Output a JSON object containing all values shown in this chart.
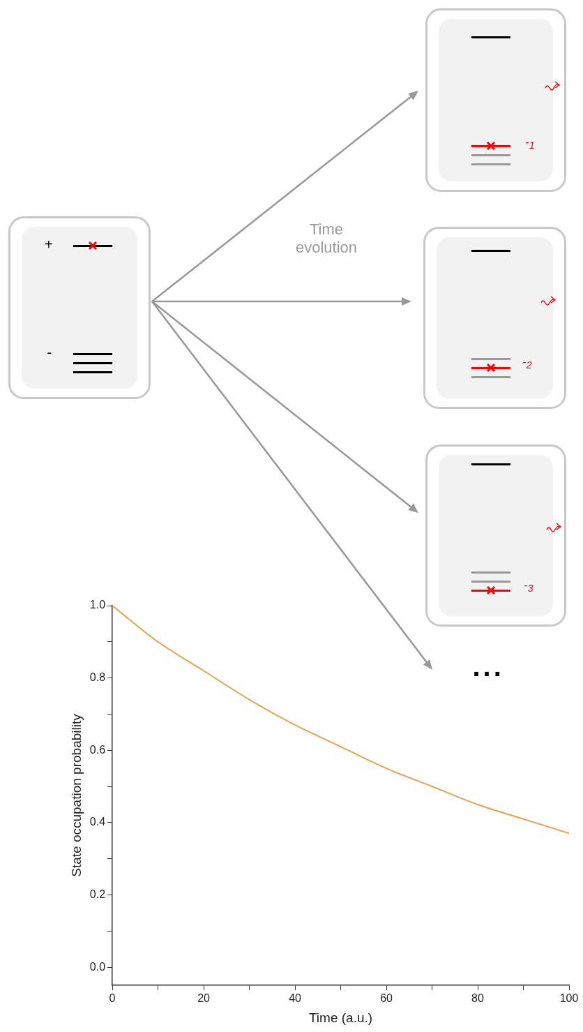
{
  "chart_data": {
    "type": "line",
    "xlabel": "Time (a.u.)",
    "ylabel": "State occupation probability",
    "x": [
      0,
      10,
      20,
      30,
      40,
      50,
      60,
      70,
      80,
      90,
      100
    ],
    "series": [
      {
        "color": "#e8a04c",
        "values": [
          1.0,
          0.9,
          0.82,
          0.74,
          0.67,
          0.61,
          0.55,
          0.5,
          0.45,
          0.41,
          0.37
        ]
      }
    ],
    "xlim": [
      0,
      100
    ],
    "ylim": [
      -0.05,
      1.0
    ],
    "xticks": [
      0,
      {
        "value": 10,
        "label": null
      },
      20,
      {
        "value": 30,
        "label": null
      },
      40,
      {
        "value": 50,
        "label": null
      },
      60,
      {
        "value": 70,
        "label": null
      },
      80,
      {
        "value": 90,
        "label": null
      },
      100
    ],
    "yticks": [
      {
        "value": 0,
        "label": "0.0"
      },
      {
        "value": 0.1,
        "label": null
      },
      {
        "value": 0.2,
        "label": "0.2"
      },
      {
        "value": 0.3,
        "label": null
      },
      {
        "value": 0.4,
        "label": "0.4"
      },
      {
        "value": 0.5,
        "label": null
      },
      {
        "value": 0.6,
        "label": "0.6"
      },
      {
        "value": 0.7,
        "label": null
      },
      {
        "value": 0.8,
        "label": "0.8"
      },
      {
        "value": 0.9,
        "label": null
      },
      {
        "value": 1.0,
        "label": "1.0"
      }
    ],
    "grid": false,
    "legend": false,
    "marker": "none",
    "line_style": "solid",
    "annotations": [
      "+",
      "-",
      "Time evolution",
      "-$_{1}$",
      "-$_{2}$",
      "-$_{3}$",
      "..."
    ]
  }
}
